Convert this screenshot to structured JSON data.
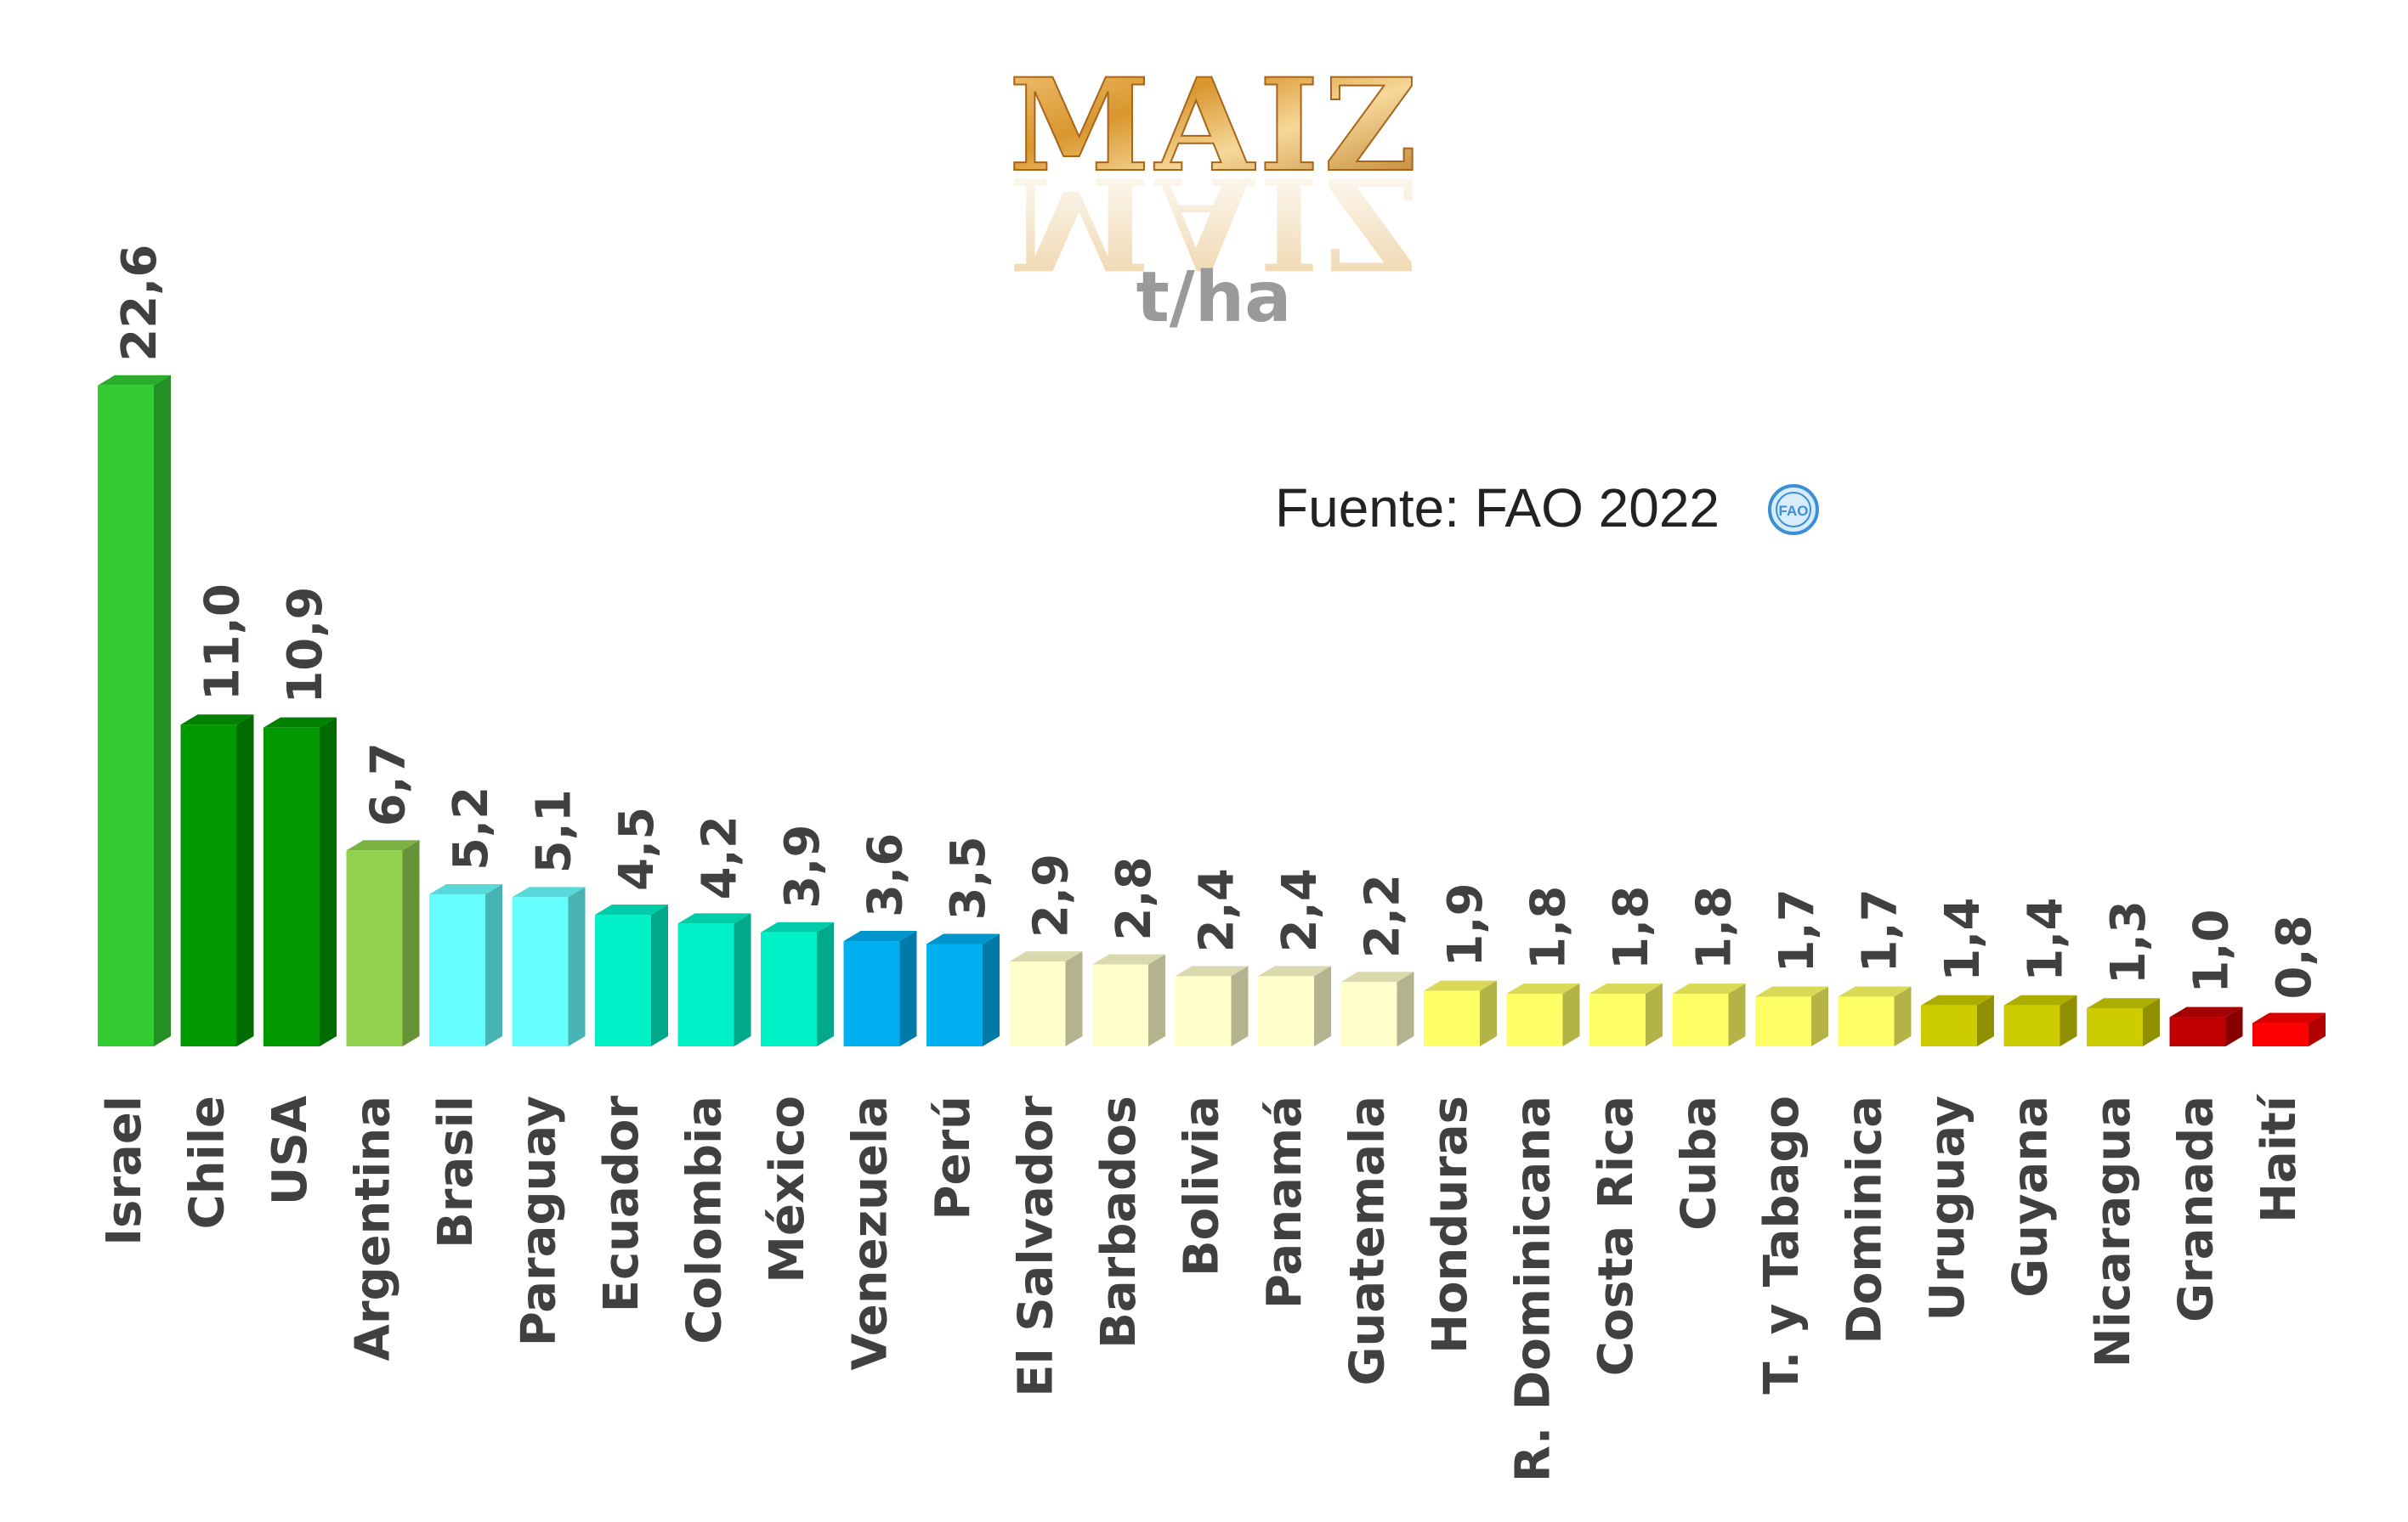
{
  "chart_data": {
    "type": "bar",
    "title": "MAIZ",
    "unit": "t/ha",
    "source": "Fuente: FAO 2022",
    "source_logo_text": "FAO",
    "categories": [
      "Israel",
      "Chile",
      "USA",
      "Argentina",
      "Brasil",
      "Paraguay",
      "Ecuador",
      "Colombia",
      "México",
      "Venezuela",
      "Perú",
      "El Salvador",
      "Barbados",
      "Bolivia",
      "Panamá",
      "Guatemala",
      "Honduras",
      "R. Dominicana",
      "Costa Rica",
      "Cuba",
      "T. y Tabago",
      "Dominica",
      "Uruguay",
      "Guyana",
      "Nicaragua",
      "Granada",
      "Haití"
    ],
    "values": [
      22.6,
      11.0,
      10.9,
      6.7,
      5.2,
      5.1,
      4.5,
      4.2,
      3.9,
      3.6,
      3.5,
      2.9,
      2.8,
      2.4,
      2.4,
      2.2,
      1.9,
      1.8,
      1.8,
      1.8,
      1.7,
      1.7,
      1.4,
      1.4,
      1.3,
      1.0,
      0.8
    ],
    "value_labels": [
      "22,6",
      "11,0",
      "10,9",
      "6,7",
      "5,2",
      "5,1",
      "4,5",
      "4,2",
      "3,9",
      "3,6",
      "3,5",
      "2,9",
      "2,8",
      "2,4",
      "2,4",
      "2,2",
      "1,9",
      "1,8",
      "1,8",
      "1,8",
      "1,7",
      "1,7",
      "1,4",
      "1,4",
      "1,3",
      "1,0",
      "0,8"
    ],
    "colors": [
      "#33cc33",
      "#009900",
      "#009900",
      "#92d050",
      "#66ffff",
      "#66ffff",
      "#00f0c8",
      "#00f0c8",
      "#00f0c8",
      "#00b0f0",
      "#00b0f0",
      "#ffffcc",
      "#ffffcc",
      "#ffffcc",
      "#ffffcc",
      "#ffffcc",
      "#ffff66",
      "#ffff66",
      "#ffff66",
      "#ffff66",
      "#ffff66",
      "#ffff66",
      "#cccc00",
      "#cccc00",
      "#cccc00",
      "#c00000",
      "#ff0000"
    ],
    "ylim": [
      0,
      23
    ],
    "grid": false,
    "legend": "none"
  }
}
